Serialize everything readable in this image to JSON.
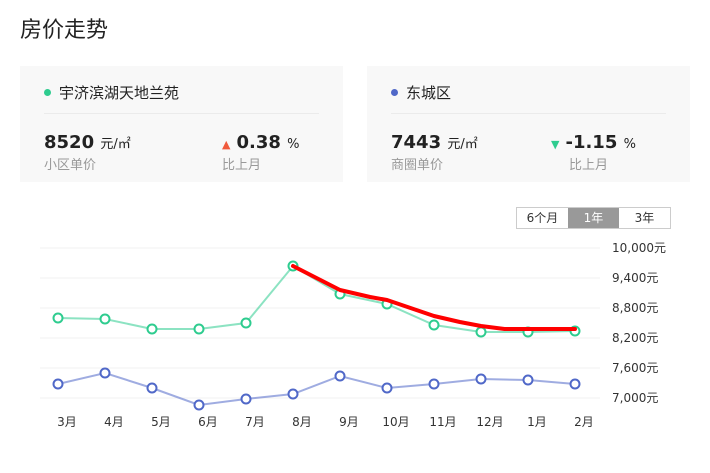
{
  "title": "房价走势",
  "cards": [
    {
      "name": "宇济滨湖天地兰苑",
      "dot_color": "#2ecc8f",
      "price": "8520",
      "unit": "元/㎡",
      "price_label": "小区单价",
      "change": "0.38",
      "change_unit": "%",
      "change_dir": "up",
      "change_icon": "triangle-up-icon",
      "change_color": "#f05a3c",
      "change_label": "比上月"
    },
    {
      "name": "东城区",
      "dot_color": "#5068c8",
      "price": "7443",
      "unit": "元/㎡",
      "price_label": "商圈单价",
      "change": "-1.15",
      "change_unit": "%",
      "change_dir": "down",
      "change_icon": "triangle-down-icon",
      "change_color": "#2ecc8f",
      "change_label": "比上月"
    }
  ],
  "range_tabs": [
    {
      "label": "6个月"
    },
    {
      "label": "1年",
      "active": true
    },
    {
      "label": "3年"
    }
  ],
  "chart_data": {
    "type": "line",
    "categories": [
      "3月",
      "4月",
      "5月",
      "6月",
      "7月",
      "8月",
      "9月",
      "10月",
      "11月",
      "12月",
      "1月",
      "2月"
    ],
    "y_ticks": [
      "10,000元",
      "9,400元",
      "8,800元",
      "8,200元",
      "7,600元",
      "7,000元"
    ],
    "ylim": [
      7000,
      10000
    ],
    "grid": true,
    "series": [
      {
        "name": "宇济滨湖天地兰苑",
        "color": "#2ecc8f",
        "values": [
          8600,
          8580,
          8380,
          8380,
          8500,
          9640,
          9080,
          8880,
          8460,
          8320,
          8320,
          8340
        ]
      },
      {
        "name": "东城区",
        "color": "#5068c8",
        "values": [
          7280,
          7500,
          7200,
          6860,
          6980,
          7080,
          7440,
          7200,
          7280,
          7380,
          7360,
          7280
        ]
      }
    ],
    "annotation": {
      "color": "#ff0000",
      "x": [
        5,
        6,
        6.64,
        7,
        8,
        8.55,
        9,
        9.5,
        11
      ],
      "values": [
        9640,
        9160,
        9020,
        8960,
        8640,
        8520,
        8440,
        8380,
        8380
      ]
    }
  }
}
